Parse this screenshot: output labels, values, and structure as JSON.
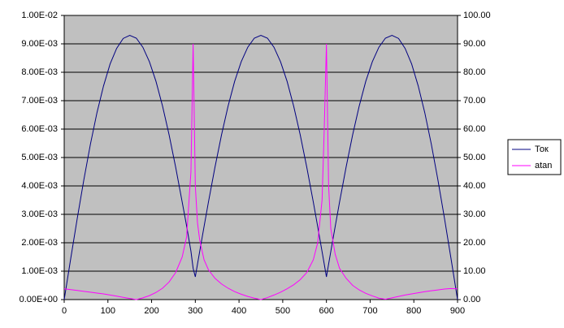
{
  "chart_data": {
    "type": "line",
    "x": [
      0,
      15,
      30,
      45,
      60,
      75,
      90,
      105,
      120,
      135,
      150,
      165,
      180,
      195,
      210,
      225,
      240,
      255,
      270,
      280,
      290,
      295,
      300,
      305,
      310,
      320,
      330,
      345,
      360,
      375,
      390,
      405,
      420,
      435,
      450,
      465,
      480,
      495,
      510,
      525,
      540,
      555,
      570,
      580,
      590,
      595,
      600,
      605,
      610,
      620,
      630,
      645,
      660,
      675,
      690,
      705,
      720,
      735,
      750,
      765,
      780,
      795,
      810,
      825,
      840,
      855,
      870,
      885,
      900
    ],
    "series": [
      {
        "name": "Ток",
        "color": "#000080",
        "axis": "y",
        "values": [
          0.0,
          0.00145,
          0.00287,
          0.00422,
          0.00547,
          0.00658,
          0.00752,
          0.00829,
          0.00884,
          0.00919,
          0.0093,
          0.0092,
          0.00888,
          0.00837,
          0.00768,
          0.00681,
          0.0058,
          0.00466,
          0.00343,
          0.0026,
          0.0017,
          0.0011,
          0.0008,
          0.00125,
          0.00169,
          0.00257,
          0.00343,
          0.00466,
          0.0058,
          0.00681,
          0.00768,
          0.00837,
          0.00888,
          0.0092,
          0.0093,
          0.0092,
          0.00888,
          0.00837,
          0.00768,
          0.00681,
          0.0058,
          0.00466,
          0.00343,
          0.00257,
          0.00169,
          0.00125,
          0.0008,
          0.00125,
          0.00169,
          0.00257,
          0.00343,
          0.00466,
          0.0058,
          0.00681,
          0.00768,
          0.00837,
          0.00888,
          0.0092,
          0.0093,
          0.00919,
          0.00884,
          0.00829,
          0.00752,
          0.00658,
          0.00547,
          0.00422,
          0.00287,
          0.00145,
          0.0
        ]
      },
      {
        "name": "atan",
        "color": "#ff00ff",
        "axis": "y2",
        "values": [
          3.8,
          3.5,
          3.2,
          2.9,
          2.6,
          2.3,
          2.0,
          1.6,
          1.2,
          0.8,
          0.4,
          0.0,
          0.6,
          1.4,
          2.5,
          4.0,
          6.2,
          9.5,
          15,
          22,
          45,
          90,
          40,
          27,
          21,
          14,
          10.5,
          7.5,
          5.5,
          4.0,
          2.8,
          1.9,
          1.1,
          0.5,
          0.0,
          0.7,
          1.6,
          2.6,
          3.8,
          5.2,
          7.0,
          9.5,
          14,
          20,
          35,
          60,
          90,
          40,
          25,
          16,
          11,
          7.5,
          5.0,
          3.4,
          2.2,
          1.3,
          0.5,
          0.1,
          0.6,
          1.1,
          1.6,
          2.0,
          2.4,
          2.8,
          3.1,
          3.4,
          3.7,
          3.9,
          3.8
        ]
      }
    ],
    "xlim": [
      0,
      900
    ],
    "xticks": [
      0,
      100,
      200,
      300,
      400,
      500,
      600,
      700,
      800,
      900
    ],
    "ylim": [
      0,
      0.01
    ],
    "yticks": [
      {
        "value": 0,
        "label": "0.00E+00"
      },
      {
        "value": 0.001,
        "label": "1.00E-03"
      },
      {
        "value": 0.002,
        "label": "2.00E-03"
      },
      {
        "value": 0.003,
        "label": "3.00E-03"
      },
      {
        "value": 0.004,
        "label": "4.00E-03"
      },
      {
        "value": 0.005,
        "label": "5.00E-03"
      },
      {
        "value": 0.006,
        "label": "6.00E-03"
      },
      {
        "value": 0.007,
        "label": "7.00E-03"
      },
      {
        "value": 0.008,
        "label": "8.00E-03"
      },
      {
        "value": 0.009,
        "label": "9.00E-03"
      },
      {
        "value": 0.01,
        "label": "1.00E-02"
      }
    ],
    "y2lim": [
      0,
      100
    ],
    "y2ticks": [
      {
        "value": 0,
        "label": "0.00"
      },
      {
        "value": 10,
        "label": "10.00"
      },
      {
        "value": 20,
        "label": "20.00"
      },
      {
        "value": 30,
        "label": "30.00"
      },
      {
        "value": 40,
        "label": "40.00"
      },
      {
        "value": 50,
        "label": "50.00"
      },
      {
        "value": 60,
        "label": "60.00"
      },
      {
        "value": 70,
        "label": "70.00"
      },
      {
        "value": 80,
        "label": "80.00"
      },
      {
        "value": 90,
        "label": "90.00"
      },
      {
        "value": 100,
        "label": "100.00"
      }
    ],
    "grid": true,
    "plot_background": "#c0c0c0",
    "legend": "right"
  }
}
